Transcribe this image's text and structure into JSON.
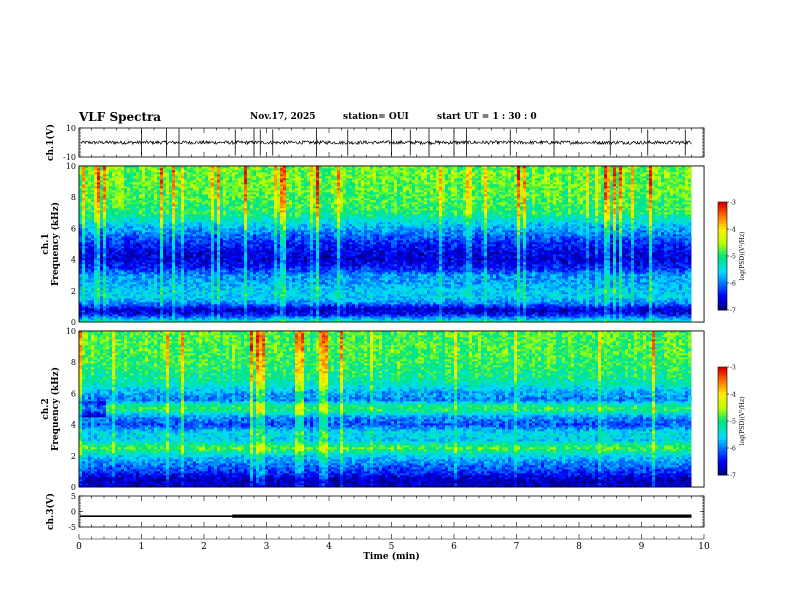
{
  "header": {
    "title": "VLF Spectra",
    "date": "Nov.17, 2025",
    "station": "station= OUI",
    "start": "start  UT =   1 : 30 : 0"
  },
  "chart_data": [
    {
      "type": "line",
      "panel": "ch1-waveform",
      "ylabel": "ch.1(V)",
      "ylim": [
        -10,
        10
      ],
      "yticks": [
        "10",
        "-10"
      ],
      "xlim": [
        0,
        10
      ],
      "baseline": 0,
      "noise_amplitude": 1.2,
      "spikes": [
        1.0,
        1.4,
        1.6,
        2.5,
        2.8,
        2.9,
        3.1,
        3.8,
        4.3,
        5.0,
        5.3,
        5.6,
        6.0,
        6.2,
        6.9,
        7.6,
        8.5,
        9.1,
        9.7
      ]
    },
    {
      "type": "heatmap",
      "panel": "ch1-spectrogram",
      "ylabel": "ch.1\nFrequency (kHz)",
      "ylim": [
        0,
        10
      ],
      "yticks": [
        "0",
        "2",
        "4",
        "6",
        "8",
        "10"
      ],
      "xlim": [
        0,
        9.8
      ],
      "colorbar": {
        "label": "log(PSD)(V²/Hz)",
        "range": [
          -7,
          -3
        ],
        "ticks": [
          "-3",
          "-4",
          "-5",
          "-6",
          "-7"
        ]
      },
      "profile_kHz": [
        0.0,
        0.5,
        0.8,
        1.2,
        1.6,
        2.0,
        2.5,
        3.0,
        3.5,
        4.0,
        4.5,
        5.0,
        5.5,
        6.0,
        6.5,
        7.0,
        8.0,
        9.0,
        10.0
      ],
      "profile_logpsd": [
        -5.2,
        -6.5,
        -6.8,
        -6.0,
        -5.6,
        -5.6,
        -5.8,
        -5.9,
        -6.4,
        -6.7,
        -6.6,
        -6.4,
        -6.1,
        -5.8,
        -5.4,
        -5.0,
        -4.8,
        -4.7,
        -4.7
      ]
    },
    {
      "type": "heatmap",
      "panel": "ch2-spectrogram",
      "ylabel": "ch.2\nFrequency (kHz)",
      "ylim": [
        0,
        10
      ],
      "yticks": [
        "0",
        "2",
        "4",
        "6",
        "8",
        "10"
      ],
      "xlim": [
        0,
        9.8
      ],
      "colorbar": {
        "label": "log(PSD)(V²/Hz)",
        "range": [
          -7,
          -3
        ],
        "ticks": [
          "-3",
          "-4",
          "-5",
          "-6",
          "-7"
        ]
      },
      "profile_kHz": [
        0.0,
        0.5,
        1.0,
        1.5,
        2.0,
        2.5,
        2.8,
        3.0,
        3.5,
        4.0,
        4.5,
        5.0,
        5.3,
        5.6,
        6.0,
        6.5,
        7.0,
        8.0,
        9.0,
        10.0
      ],
      "profile_logpsd": [
        -6.8,
        -6.8,
        -6.3,
        -6.0,
        -5.6,
        -4.8,
        -5.2,
        -5.6,
        -5.5,
        -6.2,
        -5.9,
        -4.9,
        -5.2,
        -6.0,
        -5.8,
        -5.4,
        -5.1,
        -4.9,
        -4.8,
        -4.8
      ],
      "bands_start_min": 0.4
    },
    {
      "type": "line",
      "panel": "ch3-waveform",
      "ylabel": "ch.3(V)",
      "ylim": [
        -5,
        5
      ],
      "yticks": [
        "5",
        "0",
        "-5"
      ],
      "xlim": [
        0,
        10
      ],
      "xlabel": "Time (min)",
      "xticks": [
        "0",
        "1",
        "2",
        "3",
        "4",
        "5",
        "6",
        "7",
        "8",
        "9",
        "10"
      ],
      "value": -1.5,
      "step_at": 2.45
    }
  ]
}
